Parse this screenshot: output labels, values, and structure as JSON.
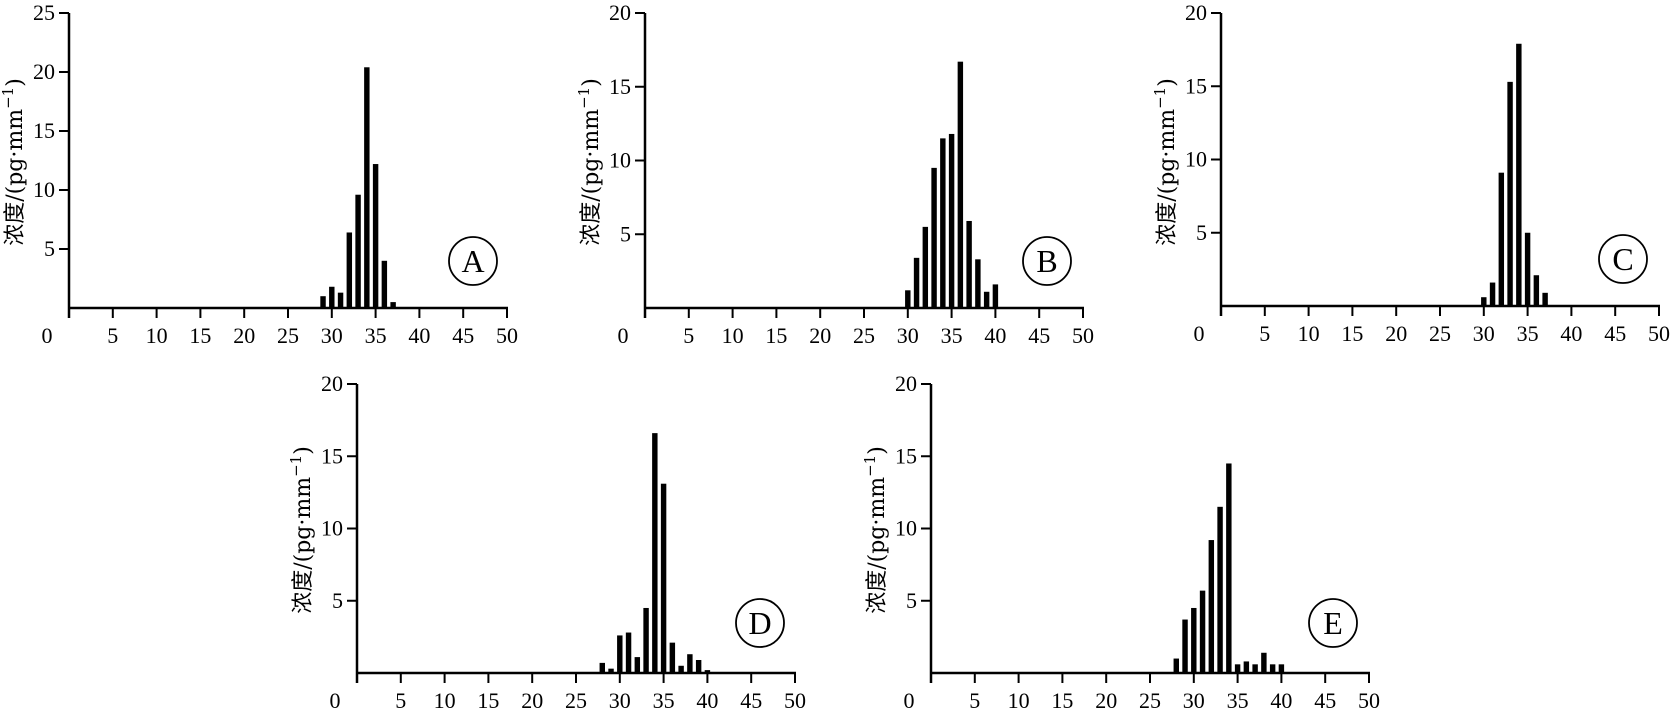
{
  "chart_data": [
    {
      "type": "bar",
      "ylabel": "浓度/(pg·mm",
      "ylabel_sup": "−1",
      "ylabel_close": ")",
      "badge": "A",
      "xlim": [
        0,
        50
      ],
      "ylim": [
        0,
        25
      ],
      "xticks": [
        0,
        5,
        10,
        15,
        20,
        25,
        30,
        35,
        40,
        45,
        50
      ],
      "yticks": [
        5,
        10,
        15,
        20,
        25
      ],
      "x": [
        29,
        30,
        31,
        32,
        33,
        34,
        35,
        36,
        37
      ],
      "values": [
        1.0,
        1.8,
        1.3,
        6.4,
        9.6,
        20.4,
        12.2,
        4.0,
        0.5
      ]
    },
    {
      "type": "bar",
      "ylabel": "浓度/(pg·mm",
      "ylabel_sup": "−1",
      "ylabel_close": ")",
      "badge": "B",
      "xlim": [
        0,
        50
      ],
      "ylim": [
        0,
        20
      ],
      "xticks": [
        0,
        5,
        10,
        15,
        20,
        25,
        30,
        35,
        40,
        45,
        50
      ],
      "yticks": [
        5,
        10,
        15,
        20
      ],
      "x": [
        30,
        31,
        32,
        33,
        34,
        35,
        36,
        37,
        38,
        39,
        40
      ],
      "values": [
        1.2,
        3.4,
        5.5,
        9.5,
        11.5,
        11.8,
        16.7,
        5.9,
        3.3,
        1.1,
        1.6
      ]
    },
    {
      "type": "bar",
      "ylabel": "浓度/(pg·mm",
      "ylabel_sup": "−1",
      "ylabel_close": ")",
      "badge": "C",
      "xlim": [
        0,
        50
      ],
      "ylim": [
        0,
        20
      ],
      "xticks": [
        0,
        5,
        10,
        15,
        20,
        25,
        30,
        35,
        40,
        45,
        50
      ],
      "yticks": [
        5,
        10,
        15,
        20
      ],
      "x": [
        30,
        31,
        32,
        33,
        34,
        35,
        36,
        37
      ],
      "values": [
        0.6,
        1.6,
        9.1,
        15.3,
        17.9,
        5.0,
        2.1,
        0.9
      ]
    },
    {
      "type": "bar",
      "ylabel": "浓度/(pg·mm",
      "ylabel_sup": "−1",
      "ylabel_close": ")",
      "badge": "D",
      "xlim": [
        0,
        50
      ],
      "ylim": [
        0,
        20
      ],
      "xticks": [
        0,
        5,
        10,
        15,
        20,
        25,
        30,
        35,
        40,
        45,
        50
      ],
      "yticks": [
        5,
        10,
        15,
        20
      ],
      "x": [
        28,
        29,
        30,
        31,
        32,
        33,
        34,
        35,
        36,
        37,
        38,
        39,
        40
      ],
      "values": [
        0.7,
        0.3,
        2.6,
        2.8,
        1.1,
        4.5,
        16.6,
        13.1,
        2.1,
        0.5,
        1.3,
        0.9,
        0.2
      ]
    },
    {
      "type": "bar",
      "ylabel": "浓度/(pg·mm",
      "ylabel_sup": "−1",
      "ylabel_close": ")",
      "badge": "E",
      "xlim": [
        0,
        50
      ],
      "ylim": [
        0,
        20
      ],
      "xticks": [
        0,
        5,
        10,
        15,
        20,
        25,
        30,
        35,
        40,
        45,
        50
      ],
      "yticks": [
        5,
        10,
        15,
        20
      ],
      "x": [
        28,
        29,
        30,
        31,
        32,
        33,
        34,
        35,
        36,
        37,
        38,
        39,
        40
      ],
      "values": [
        1.0,
        3.7,
        4.5,
        5.7,
        9.2,
        11.5,
        14.5,
        0.6,
        0.8,
        0.6,
        1.4,
        0.6,
        0.6
      ]
    }
  ]
}
